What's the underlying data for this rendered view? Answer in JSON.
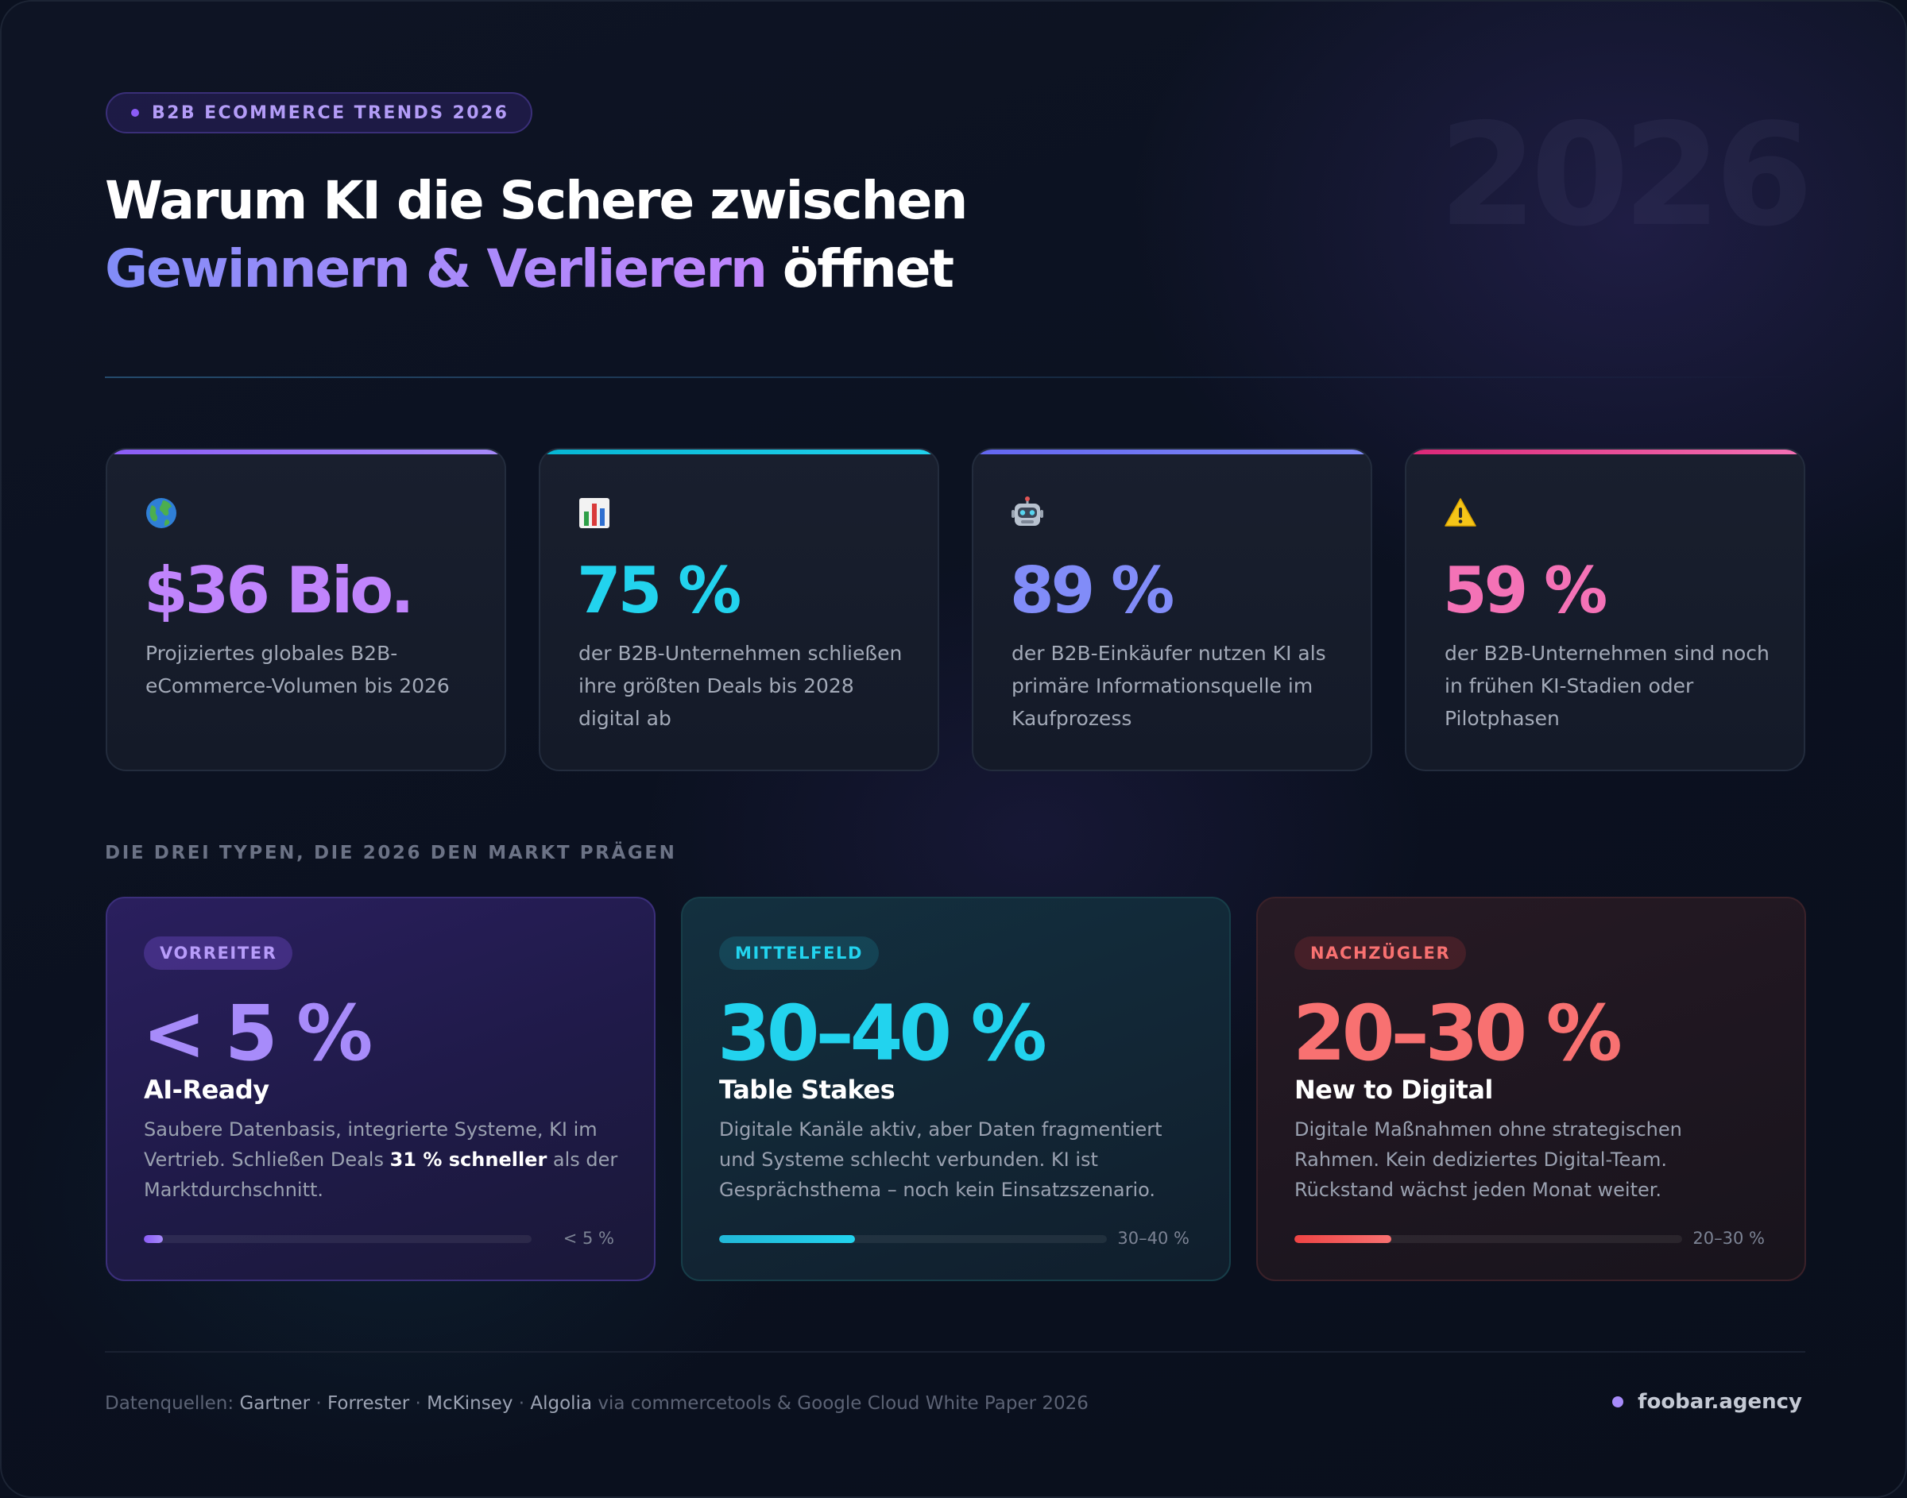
{
  "header": {
    "eyebrow": "B2B ECOMMERCE TRENDS 2026",
    "background_year": "2026",
    "title_line1": "Warum KI die Schere zwischen",
    "title_highlight": "Gewinnern & Verlierern",
    "title_end": " öffnet"
  },
  "stats": [
    {
      "icon": "globe-icon",
      "value": "$36 Bio.",
      "color": "#c084fc",
      "accent": [
        "#8b5cf6",
        "#a78bfa"
      ],
      "description": "Projiziertes globales B2B-eCommerce-Volumen bis 2026"
    },
    {
      "icon": "bar-chart-icon",
      "value": "75 %",
      "color": "#22d3ee",
      "accent": [
        "#06b6d4",
        "#22d3ee"
      ],
      "description": "der B2B-Unternehmen schließen ihre größten Deals bis 2028 digital ab"
    },
    {
      "icon": "robot-icon",
      "value": "89 %",
      "color": "#818cf8",
      "accent": [
        "#6366f1",
        "#818cf8"
      ],
      "description": "der B2B-Einkäufer nutzen KI als primäre Informationsquelle im Kaufprozess"
    },
    {
      "icon": "warning-icon",
      "value": "59 %",
      "color": "#f472b6",
      "accent": [
        "#db2777",
        "#f472b6"
      ],
      "description": "der B2B-Unternehmen sind noch in frühen KI-Stadien oder Pilotphasen"
    }
  ],
  "section_label": "DIE DREI TYPEN, DIE 2026 DEN MARKT PRÄGEN",
  "types": [
    {
      "tag": "VORREITER",
      "value": "< 5 %",
      "name": "AI-Ready",
      "body_before": "Saubere Datenbasis, integrierte Systeme, KI im Vertrieb. Schließen Deals ",
      "body_bold": "31 % schneller",
      "body_after": " als der Marktdurchschnitt.",
      "bar_label": "< 5 %",
      "bar_fraction": 0.05,
      "color": "#a78bfa",
      "bar_color": "#8b5cf6"
    },
    {
      "tag": "MITTELFELD",
      "value": "30–40 %",
      "name": "Table Stakes",
      "body_before": "Digitale Kanäle aktiv, aber Daten fragmentiert und Systeme schlecht verbunden. KI ist Gesprächsthema – noch kein Einsatzszenario.",
      "body_bold": "",
      "body_after": "",
      "bar_label": "30–40 %",
      "bar_fraction": 0.35,
      "color": "#22d3ee",
      "bar_color": "#22b8d8"
    },
    {
      "tag": "NACHZÜGLER",
      "value": "20–30 %",
      "name": "New to Digital",
      "body_before": "Digitale Maßnahmen ohne strategischen Rahmen. Kein dediziertes Digital-Team. Rückstand wächst jeden Monat weiter.",
      "body_bold": "",
      "body_after": "",
      "bar_label": "20–30 %",
      "bar_fraction": 0.25,
      "color": "#f87171",
      "bar_color": "#ef4444"
    }
  ],
  "footer": {
    "prefix": "Datenquellen: ",
    "sources": [
      "Gartner",
      "Forrester",
      "McKinsey",
      "Algolia"
    ],
    "separator": " · ",
    "suffix": " via commercetools & Google Cloud White Paper 2026",
    "brand": "foobar.agency"
  }
}
